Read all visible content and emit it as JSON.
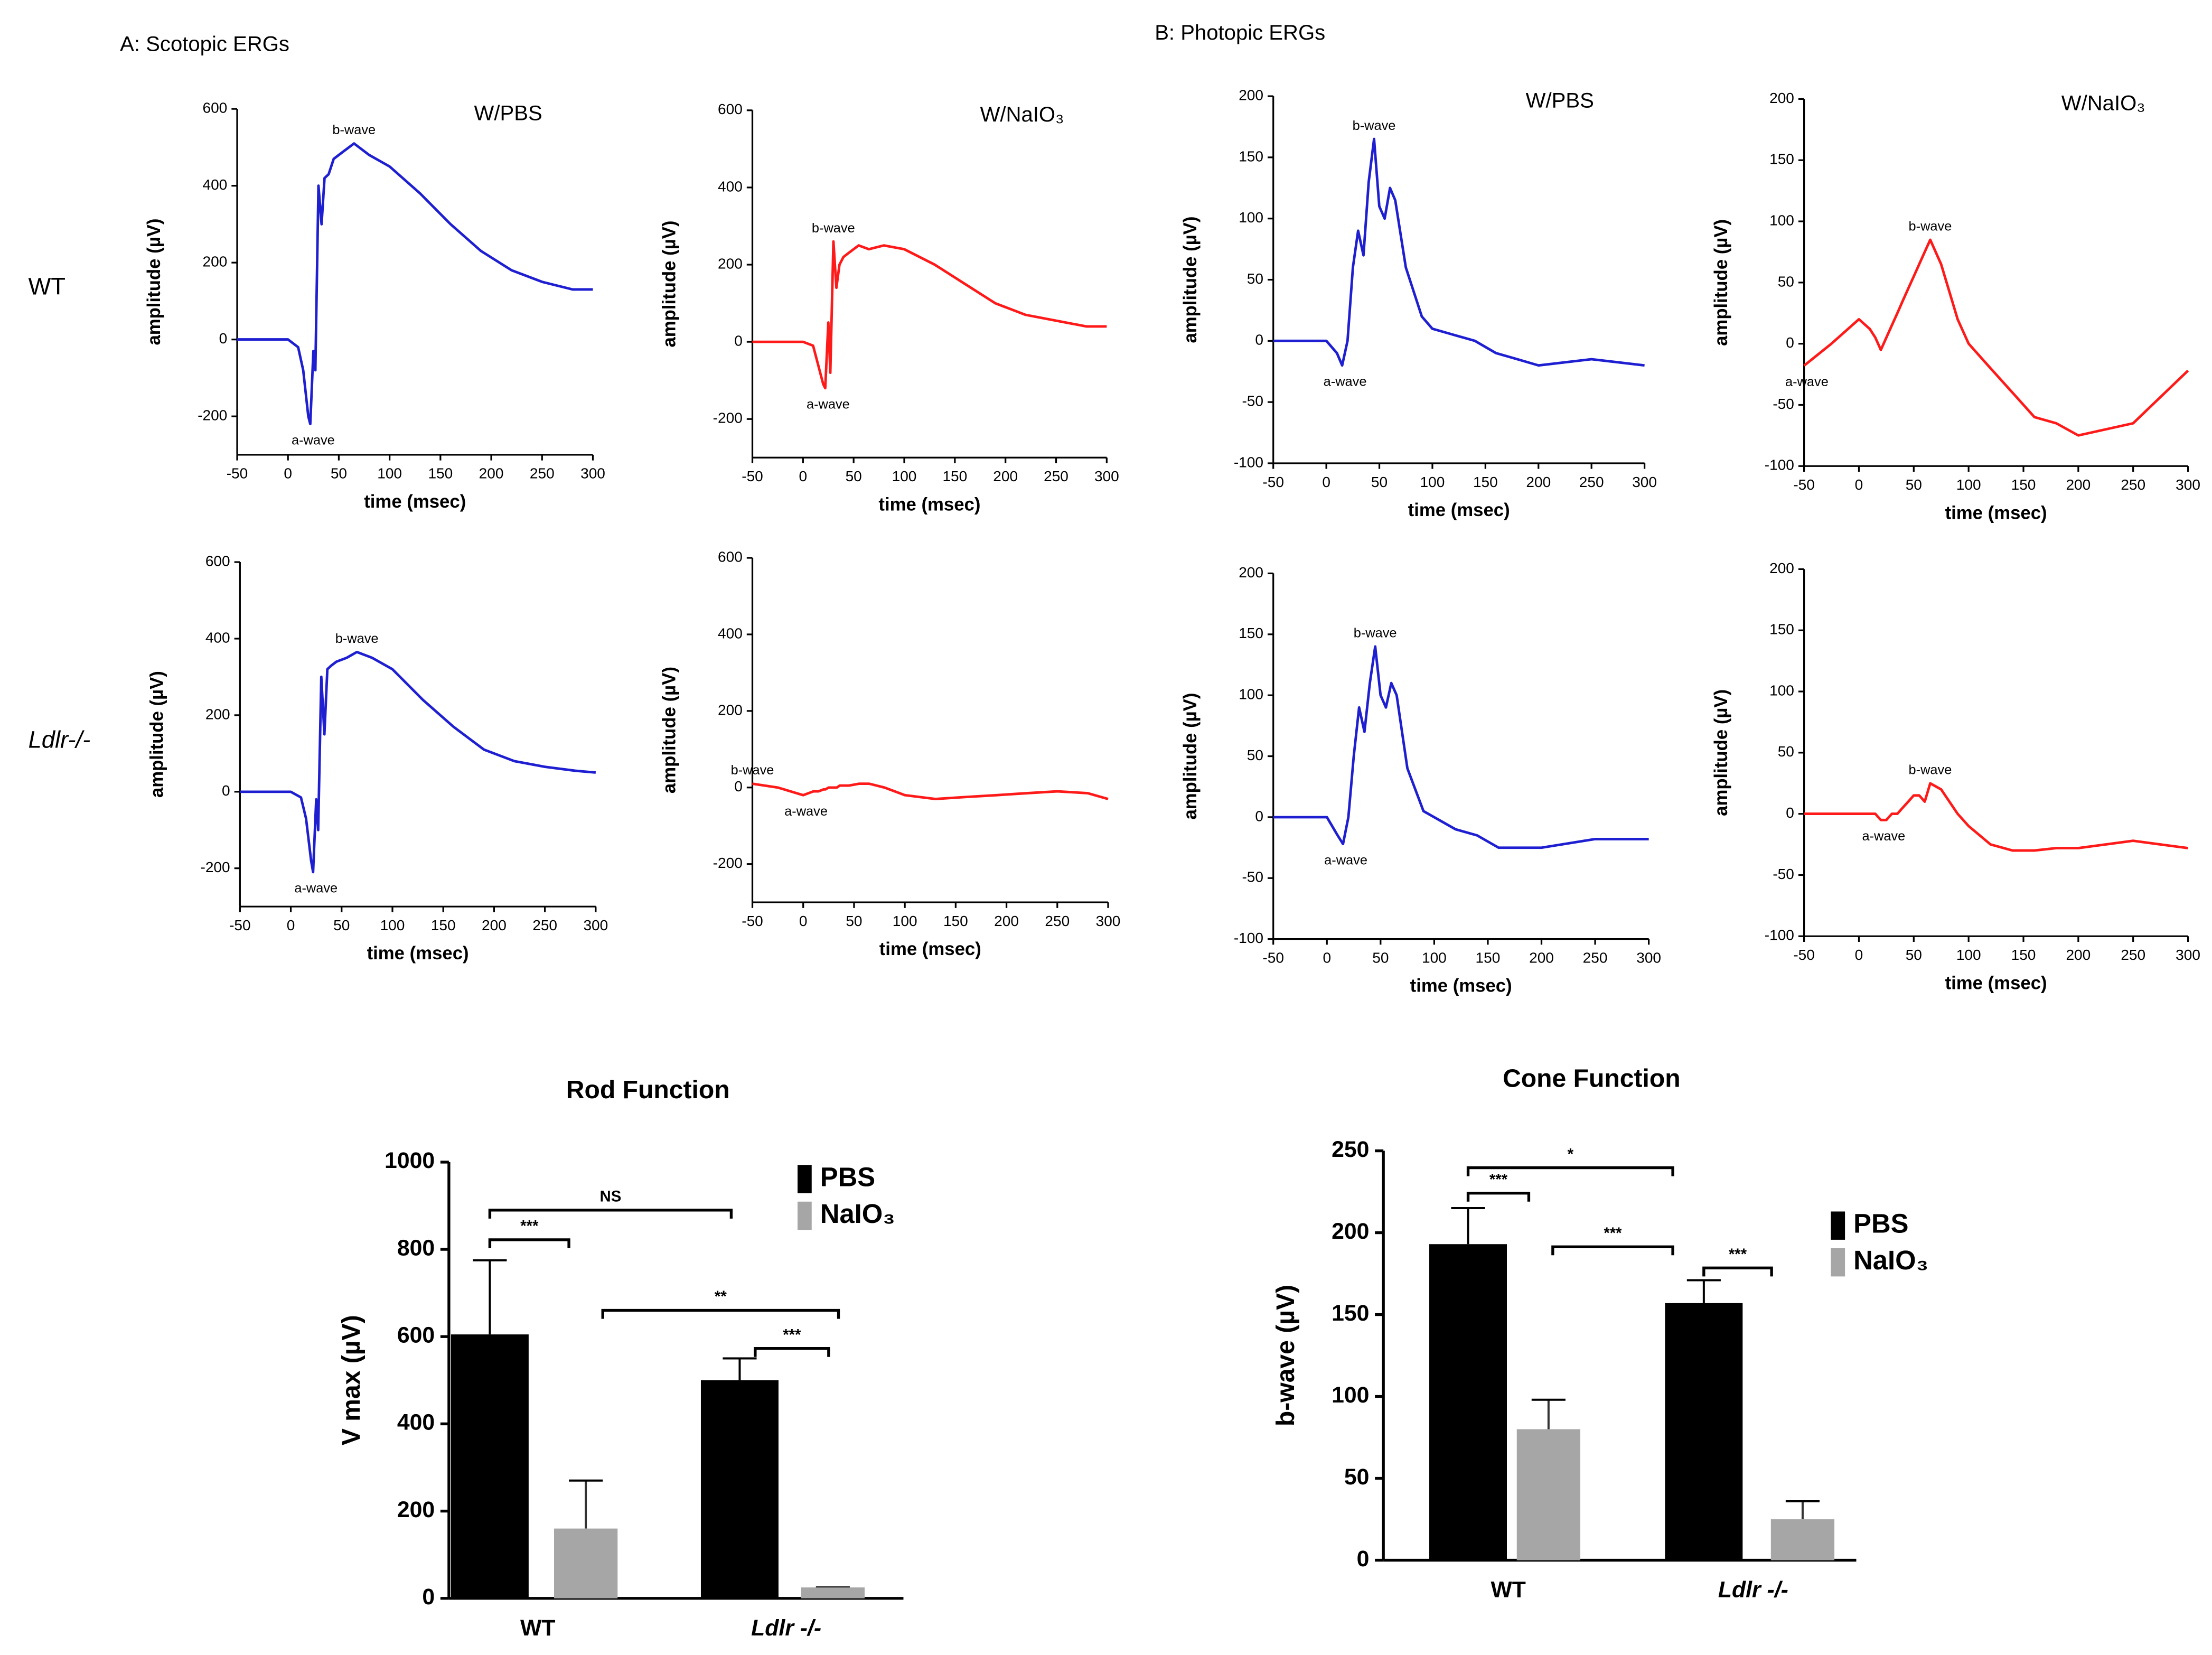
{
  "figure": {
    "panel_a": "A: Scotopic ERGs",
    "panel_b": "B: Photopic ERGs",
    "row_labels": [
      "WT",
      "Ldlr-/-"
    ]
  },
  "chart_data": [
    {
      "type": "line",
      "title": "W/PBS",
      "xlabel": "time (msec)",
      "ylabel": "amplitude (µV)",
      "annotations": [
        "b-wave",
        "a-wave"
      ],
      "color": "#1f1fd2",
      "xlim": [
        -50,
        300
      ],
      "xticks": [
        -50,
        0,
        50,
        100,
        150,
        200,
        250,
        300
      ],
      "ylim": [
        -300,
        600
      ],
      "yticks": [
        -200,
        0,
        200,
        400,
        600
      ],
      "x": [
        -50,
        -25,
        0,
        10,
        15,
        20,
        22,
        25,
        27,
        30,
        33,
        36,
        40,
        45,
        55,
        65,
        80,
        100,
        130,
        160,
        190,
        220,
        250,
        280,
        300
      ],
      "values": [
        0,
        0,
        0,
        -20,
        -80,
        -200,
        -220,
        -30,
        -80,
        400,
        300,
        420,
        430,
        470,
        490,
        510,
        480,
        450,
        380,
        300,
        230,
        180,
        150,
        130,
        130
      ]
    },
    {
      "type": "line",
      "title": "W/NaIO₃",
      "xlabel": "time (msec)",
      "ylabel": "amplitude (µV)",
      "annotations": [
        "b-wave",
        "a-wave"
      ],
      "color": "#ff1a1a",
      "xlim": [
        -50,
        300
      ],
      "xticks": [
        -50,
        0,
        50,
        100,
        150,
        200,
        250,
        300
      ],
      "ylim": [
        -300,
        600
      ],
      "yticks": [
        -200,
        0,
        200,
        400,
        600
      ],
      "x": [
        -50,
        -25,
        0,
        10,
        15,
        20,
        22,
        25,
        27,
        30,
        33,
        36,
        40,
        45,
        55,
        65,
        80,
        100,
        130,
        160,
        190,
        220,
        250,
        280,
        300
      ],
      "values": [
        0,
        0,
        0,
        -10,
        -60,
        -110,
        -120,
        50,
        -80,
        260,
        140,
        200,
        220,
        230,
        250,
        240,
        250,
        240,
        200,
        150,
        100,
        70,
        55,
        40,
        40
      ]
    },
    {
      "type": "line",
      "xlabel": "time (msec)",
      "ylabel": "amplitude (µV)",
      "annotations": [
        "b-wave",
        "a-wave"
      ],
      "color": "#1f1fd2",
      "xlim": [
        -50,
        300
      ],
      "xticks": [
        -50,
        0,
        50,
        100,
        150,
        200,
        250,
        300
      ],
      "ylim": [
        -300,
        600
      ],
      "yticks": [
        -200,
        0,
        200,
        400,
        600
      ],
      "x": [
        -50,
        -25,
        0,
        10,
        15,
        20,
        22,
        25,
        27,
        30,
        33,
        36,
        40,
        45,
        55,
        65,
        80,
        100,
        130,
        160,
        190,
        220,
        250,
        280,
        300
      ],
      "values": [
        0,
        0,
        0,
        -15,
        -70,
        -180,
        -210,
        -20,
        -100,
        300,
        150,
        320,
        330,
        340,
        350,
        365,
        350,
        320,
        240,
        170,
        110,
        80,
        65,
        55,
        50
      ]
    },
    {
      "type": "line",
      "xlabel": "time (msec)",
      "ylabel": "amplitude (µV)",
      "annotations": [
        "b-wave",
        "a-wave"
      ],
      "color": "#ff1a1a",
      "xlim": [
        -50,
        300
      ],
      "xticks": [
        -50,
        0,
        50,
        100,
        150,
        200,
        250,
        300
      ],
      "ylim": [
        -300,
        600
      ],
      "yticks": [
        -200,
        0,
        200,
        400,
        600
      ],
      "x": [
        -50,
        -25,
        0,
        10,
        15,
        20,
        22,
        25,
        27,
        30,
        33,
        36,
        40,
        45,
        55,
        65,
        80,
        100,
        130,
        160,
        190,
        220,
        250,
        280,
        300
      ],
      "values": [
        10,
        0,
        -20,
        -10,
        -10,
        -5,
        -5,
        0,
        0,
        0,
        0,
        5,
        5,
        5,
        10,
        10,
        0,
        -20,
        -30,
        -25,
        -20,
        -15,
        -10,
        -15,
        -30
      ]
    },
    {
      "type": "line",
      "title": "W/PBS",
      "xlabel": "time (msec)",
      "ylabel": "amplitude (µV)",
      "annotations": [
        "b-wave",
        "a-wave"
      ],
      "color": "#1f1fd2",
      "xlim": [
        -50,
        300
      ],
      "xticks": [
        -50,
        0,
        50,
        100,
        150,
        200,
        250,
        300
      ],
      "ylim": [
        -100,
        200
      ],
      "yticks": [
        -100,
        -50,
        0,
        50,
        100,
        150,
        200
      ],
      "x": [
        -50,
        -25,
        0,
        10,
        15,
        20,
        25,
        30,
        35,
        40,
        45,
        50,
        55,
        60,
        65,
        75,
        90,
        100,
        120,
        140,
        160,
        180,
        200,
        250,
        300
      ],
      "values": [
        0,
        0,
        0,
        -10,
        -20,
        0,
        60,
        90,
        70,
        130,
        165,
        110,
        100,
        125,
        115,
        60,
        20,
        10,
        5,
        0,
        -10,
        -15,
        -20,
        -15,
        -20
      ]
    },
    {
      "type": "line",
      "title": "W/NaIO₃",
      "xlabel": "time (msec)",
      "ylabel": "amplitude (µV)",
      "annotations": [
        "b-wave",
        "a-wave"
      ],
      "color": "#ff1a1a",
      "xlim": [
        -50,
        300
      ],
      "xticks": [
        -50,
        0,
        50,
        100,
        150,
        200,
        250,
        300
      ],
      "ylim": [
        -100,
        200
      ],
      "yticks": [
        -100,
        -50,
        0,
        50,
        100,
        150,
        200
      ],
      "x": [
        -50,
        -25,
        0,
        10,
        15,
        20,
        25,
        30,
        35,
        40,
        45,
        50,
        55,
        60,
        65,
        75,
        90,
        100,
        120,
        140,
        160,
        180,
        200,
        250,
        300
      ],
      "values": [
        -18,
        0,
        20,
        12,
        5,
        -5,
        5,
        15,
        25,
        35,
        45,
        55,
        65,
        75,
        85,
        65,
        20,
        0,
        -20,
        -40,
        -60,
        -65,
        -75,
        -65,
        -22
      ]
    },
    {
      "type": "line",
      "xlabel": "time (msec)",
      "ylabel": "amplitude (µV)",
      "annotations": [
        "b-wave",
        "a-wave"
      ],
      "color": "#1f1fd2",
      "xlim": [
        -50,
        300
      ],
      "xticks": [
        -50,
        0,
        50,
        100,
        150,
        200,
        250,
        300
      ],
      "ylim": [
        -100,
        200
      ],
      "yticks": [
        -100,
        -50,
        0,
        50,
        100,
        150,
        200
      ],
      "x": [
        -50,
        -25,
        0,
        10,
        15,
        20,
        25,
        30,
        35,
        40,
        45,
        50,
        55,
        60,
        65,
        75,
        90,
        100,
        120,
        140,
        160,
        180,
        200,
        250,
        300
      ],
      "values": [
        0,
        0,
        0,
        -15,
        -22,
        0,
        50,
        90,
        70,
        110,
        140,
        100,
        90,
        110,
        100,
        40,
        5,
        0,
        -10,
        -15,
        -25,
        -25,
        -25,
        -18,
        -18
      ]
    },
    {
      "type": "line",
      "xlabel": "time (msec)",
      "ylabel": "amplitude (µV)",
      "annotations": [
        "b-wave",
        "a-wave"
      ],
      "color": "#ff1a1a",
      "xlim": [
        -50,
        300
      ],
      "xticks": [
        -50,
        0,
        50,
        100,
        150,
        200,
        250,
        300
      ],
      "ylim": [
        -100,
        200
      ],
      "yticks": [
        -100,
        -50,
        0,
        50,
        100,
        150,
        200
      ],
      "x": [
        -50,
        -25,
        0,
        10,
        15,
        20,
        25,
        30,
        35,
        40,
        45,
        50,
        55,
        60,
        65,
        75,
        90,
        100,
        120,
        140,
        160,
        180,
        200,
        250,
        300
      ],
      "values": [
        0,
        0,
        0,
        0,
        0,
        -5,
        -5,
        0,
        0,
        5,
        10,
        15,
        15,
        10,
        25,
        20,
        0,
        -10,
        -25,
        -30,
        -30,
        -28,
        -28,
        -22,
        -28
      ]
    },
    {
      "type": "bar",
      "title": "Rod Function",
      "ylabel": "V max (µV)",
      "categories": [
        "WT",
        "Ldlr -/-"
      ],
      "ylim": [
        0,
        1000
      ],
      "yticks": [
        0,
        200,
        400,
        600,
        800,
        1000
      ],
      "significance": [
        "***",
        "NS",
        "**",
        "***"
      ],
      "series": [
        {
          "name": "PBS",
          "color": "#000000",
          "values": [
            605,
            500
          ],
          "errors": [
            170,
            50
          ]
        },
        {
          "name": "NaIO₃",
          "color": "#a6a6a6",
          "values": [
            160,
            25
          ],
          "errors": [
            110,
            0
          ]
        }
      ]
    },
    {
      "type": "bar",
      "title": "Cone Function",
      "ylabel": "b-wave (µV)",
      "categories": [
        "WT",
        "Ldlr -/-"
      ],
      "ylim": [
        0,
        250
      ],
      "yticks": [
        0,
        50,
        100,
        150,
        200,
        250
      ],
      "significance": [
        "***",
        "*",
        "***",
        "***"
      ],
      "series": [
        {
          "name": "PBS",
          "color": "#000000",
          "values": [
            193,
            157
          ],
          "errors": [
            22,
            14
          ]
        },
        {
          "name": "NaIO₃",
          "color": "#a6a6a6",
          "values": [
            80,
            25
          ],
          "errors": [
            18,
            11
          ]
        }
      ]
    }
  ]
}
